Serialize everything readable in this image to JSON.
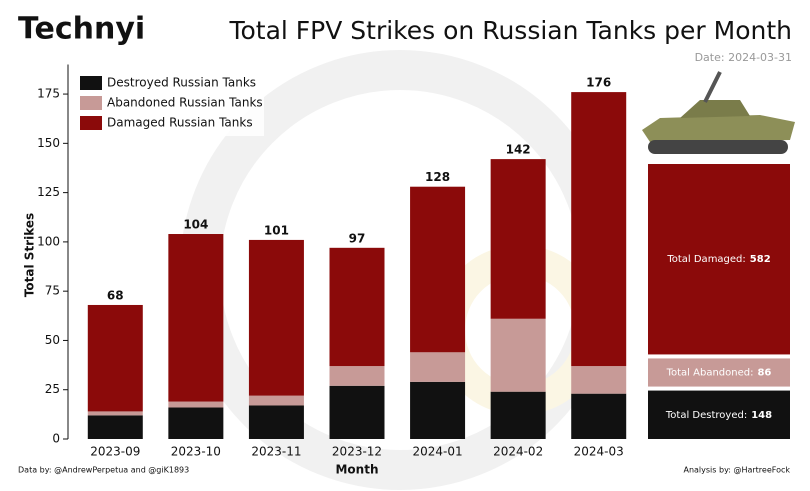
{
  "logo": "Technyi",
  "chart_data": {
    "type": "stacked_bar",
    "title": "Total FPV Strikes on Russian Tanks per Month",
    "subtitle": "Date: 2024-03-31",
    "x_label": "Month",
    "y_label": "Total Strikes",
    "categories": [
      "2023-09",
      "2023-10",
      "2023-11",
      "2023-12",
      "2024-01",
      "2024-02",
      "2024-03"
    ],
    "series": [
      {
        "name": "Destroyed Russian Tanks",
        "color": "#111111",
        "values": [
          12,
          16,
          17,
          27,
          29,
          24,
          23
        ]
      },
      {
        "name": "Abandoned Russian Tanks",
        "color": "#c79a97",
        "values": [
          2,
          3,
          5,
          10,
          15,
          37,
          14
        ]
      },
      {
        "name": "Damaged Russian Tanks",
        "color": "#8b0a0a",
        "values": [
          54,
          85,
          79,
          60,
          84,
          81,
          139
        ]
      }
    ],
    "totals": [
      68,
      104,
      101,
      97,
      128,
      142,
      176
    ],
    "ylim": [
      0,
      190
    ],
    "yticks": [
      0,
      25,
      50,
      75,
      100,
      125,
      150,
      175
    ],
    "legend": "top-left",
    "summary": [
      {
        "label": "Total Damaged:",
        "value": 582
      },
      {
        "label": "Total Abandoned:",
        "value": 86
      },
      {
        "label": "Total Destroyed:",
        "value": 148
      }
    ]
  },
  "footer": {
    "left": "Data by: @AndrewPerpetua and @giK1893",
    "right": "Analysis by: @HartreeFock"
  }
}
